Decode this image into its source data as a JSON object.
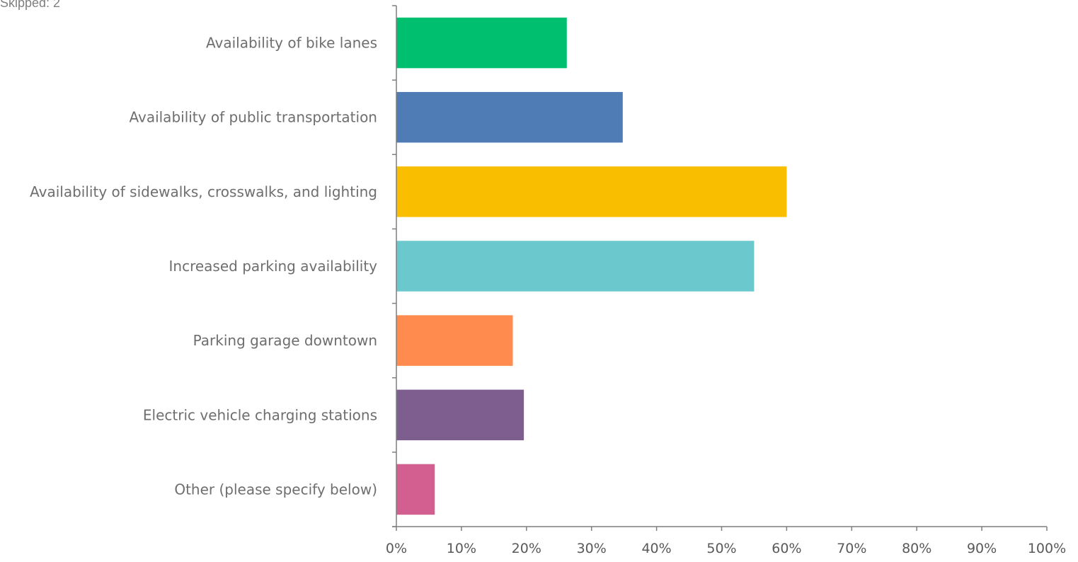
{
  "skipped_text": "Skipped: 2",
  "chart_data": {
    "type": "bar",
    "orientation": "horizontal",
    "categories": [
      "Availability of bike lanes",
      "Availability of public transportation",
      "Availability of sidewalks, crosswalks, and lighting",
      "Increased parking availability",
      "Parking garage downtown",
      "Electric vehicle charging stations",
      "Other (please specify below)"
    ],
    "values": [
      26.2,
      34.8,
      60.0,
      55.0,
      17.9,
      19.6,
      5.9
    ],
    "colors": [
      "#00bf6f",
      "#507cb6",
      "#f9be00",
      "#6bc8cd",
      "#ff8b4f",
      "#7d5e8e",
      "#d25f90"
    ],
    "xlim": [
      0,
      100
    ],
    "x_ticks": [
      "0%",
      "10%",
      "20%",
      "30%",
      "40%",
      "50%",
      "60%",
      "70%",
      "80%",
      "90%",
      "100%"
    ],
    "title": "",
    "xlabel": "",
    "ylabel": "",
    "grid": false,
    "legend": "none"
  }
}
